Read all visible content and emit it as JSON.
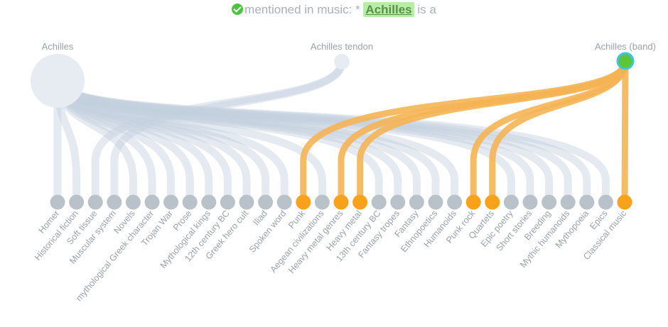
{
  "header": {
    "prefix": "mentioned in music: * ",
    "highlight": "Achilles",
    "suffix": " is a"
  },
  "colors": {
    "gray_link": "#c4d1de",
    "gray_node": "#b9c1c9",
    "orange": "#f7a21a",
    "orange_light": "#f5b454",
    "big_node": "#e6ecf1",
    "highlight_fill": "#5ec43b",
    "highlight_ring": "#3bc6e6"
  },
  "top_nodes": [
    {
      "label": "Achilles"
    },
    {
      "label": "Achilles tendon"
    },
    {
      "label": "Achilles (band)"
    }
  ],
  "bottom_nodes": [
    {
      "label": "Homer",
      "sources": [
        "Achilles"
      ]
    },
    {
      "label": "Historical fiction",
      "sources": [
        "Achilles"
      ]
    },
    {
      "label": "Soft tissue",
      "sources": [
        "Achilles tendon"
      ]
    },
    {
      "label": "Muscular system",
      "sources": [
        "Achilles tendon"
      ]
    },
    {
      "label": "Novels",
      "sources": [
        "Achilles"
      ]
    },
    {
      "label": "mythological Greek character",
      "sources": [
        "Achilles"
      ]
    },
    {
      "label": "Trojan War",
      "sources": [
        "Achilles"
      ]
    },
    {
      "label": "Prose",
      "sources": [
        "Achilles"
      ]
    },
    {
      "label": "Mythological kings",
      "sources": [
        "Achilles"
      ]
    },
    {
      "label": "12th century BC",
      "sources": [
        "Achilles"
      ]
    },
    {
      "label": "Greek hero cult",
      "sources": [
        "Achilles"
      ]
    },
    {
      "label": "Iliad",
      "sources": [
        "Achilles"
      ]
    },
    {
      "label": "Spoken word",
      "sources": [
        "Achilles"
      ]
    },
    {
      "label": "Punk",
      "sources": [
        "Achilles (band)"
      ],
      "active": true
    },
    {
      "label": "Aegean civilizations",
      "sources": [
        "Achilles"
      ]
    },
    {
      "label": "Heavy metal genres",
      "sources": [
        "Achilles (band)"
      ],
      "active": true
    },
    {
      "label": "Heavy metal",
      "sources": [
        "Achilles (band)"
      ],
      "active": true
    },
    {
      "label": "13th century BC",
      "sources": [
        "Achilles"
      ]
    },
    {
      "label": "Fantasy tropes",
      "sources": [
        "Achilles"
      ]
    },
    {
      "label": "Fantasy",
      "sources": [
        "Achilles"
      ]
    },
    {
      "label": "Ethnopoetics",
      "sources": [
        "Achilles"
      ]
    },
    {
      "label": "Humanoids",
      "sources": [
        "Achilles"
      ]
    },
    {
      "label": "Punk rock",
      "sources": [
        "Achilles (band)"
      ],
      "active": true
    },
    {
      "label": "Quartets",
      "sources": [
        "Achilles (band)"
      ],
      "active": true
    },
    {
      "label": "Epic poetry",
      "sources": [
        "Achilles"
      ]
    },
    {
      "label": "Short stories",
      "sources": [
        "Achilles"
      ]
    },
    {
      "label": "Breeding",
      "sources": [
        "Achilles"
      ]
    },
    {
      "label": "Mythic humanoids",
      "sources": [
        "Achilles"
      ]
    },
    {
      "label": "Mythopoeia",
      "sources": [
        "Achilles"
      ]
    },
    {
      "label": "Epics",
      "sources": [
        "Achilles"
      ]
    },
    {
      "label": "Classical music",
      "sources": [
        "Achilles (band)"
      ],
      "active": true
    }
  ]
}
